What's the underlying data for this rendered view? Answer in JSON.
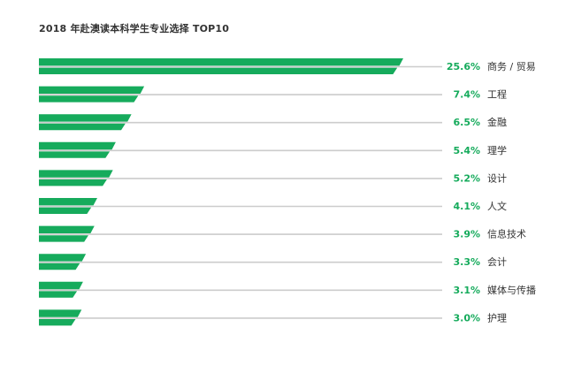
{
  "colors": {
    "bar": "#16ab5c",
    "track": "#cccccc",
    "value_text": "#16ab5c",
    "category_text": "#333333",
    "title_text": "#333333"
  },
  "chart_data": {
    "type": "bar",
    "orientation": "horizontal",
    "title": "2018 年赴澳读本科学生专业选择 TOP10",
    "categories": [
      "商务 / 贸易",
      "工程",
      "金融",
      "理学",
      "设计",
      "人文",
      "信息技术",
      "会计",
      "媒体与传播",
      "护理"
    ],
    "values": [
      25.6,
      7.4,
      6.5,
      5.4,
      5.2,
      4.1,
      3.9,
      3.3,
      3.1,
      3.0
    ],
    "value_labels": [
      "25.6%",
      "7.4%",
      "6.5%",
      "5.4%",
      "5.2%",
      "4.1%",
      "3.9%",
      "3.3%",
      "3.1%",
      "3.0%"
    ],
    "unit": "%",
    "xlim": [
      0,
      25.6
    ],
    "grid": false,
    "legend": "none"
  }
}
